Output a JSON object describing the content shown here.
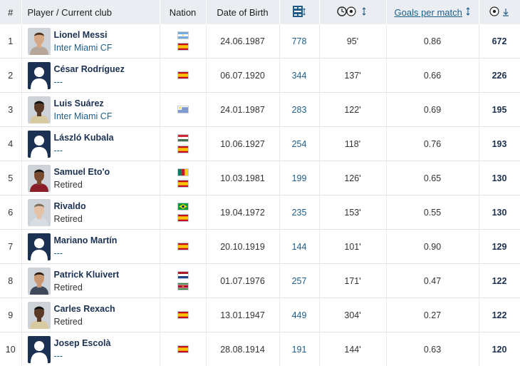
{
  "header": {
    "rank": "#",
    "player": "Player / Current club",
    "nation": "Nation",
    "dob": "Date of Birth",
    "apps_icon": "lineup-icon",
    "minutes_icon": "clock-ball-icon",
    "sort_icon": "sort-arrows-icon",
    "goals_per_match": "Goals per match",
    "goals_icon": "ball-icon",
    "sort_desc_icon": "sort-down-icon"
  },
  "colors": {
    "header_bg": "#eaeef2",
    "name": "#1a3151",
    "link": "#1d5f8a"
  },
  "rows": [
    {
      "rank": "1",
      "name": "Lionel Messi",
      "club": "Inter Miami CF",
      "flags": [
        "argentina",
        "spain"
      ],
      "dob": "24.06.1987",
      "apps": "778",
      "minutes": "95'",
      "gpm": "0.86",
      "goals": "672",
      "avatar": "photo"
    },
    {
      "rank": "2",
      "name": "César Rodríguez",
      "club": "---",
      "flags": [
        "spain"
      ],
      "dob": "06.07.1920",
      "apps": "344",
      "minutes": "137'",
      "gpm": "0.66",
      "goals": "226",
      "avatar": "silhouette"
    },
    {
      "rank": "3",
      "name": "Luis Suárez",
      "club": "Inter Miami CF",
      "flags": [
        "uruguay"
      ],
      "dob": "24.01.1987",
      "apps": "283",
      "minutes": "122'",
      "gpm": "0.69",
      "goals": "195",
      "avatar": "photo"
    },
    {
      "rank": "4",
      "name": "László Kubala",
      "club": "---",
      "flags": [
        "hungary",
        "spain"
      ],
      "dob": "10.06.1927",
      "apps": "254",
      "minutes": "118'",
      "gpm": "0.76",
      "goals": "193",
      "avatar": "silhouette"
    },
    {
      "rank": "5",
      "name": "Samuel Eto'o",
      "club": "Retired",
      "flags": [
        "cameroon",
        "spain"
      ],
      "dob": "10.03.1981",
      "apps": "199",
      "minutes": "126'",
      "gpm": "0.65",
      "goals": "130",
      "avatar": "photo"
    },
    {
      "rank": "6",
      "name": "Rivaldo",
      "club": "Retired",
      "flags": [
        "brazil",
        "spain"
      ],
      "dob": "19.04.1972",
      "apps": "235",
      "minutes": "153'",
      "gpm": "0.55",
      "goals": "130",
      "avatar": "photo"
    },
    {
      "rank": "7",
      "name": "Mariano Martín",
      "club": "---",
      "flags": [
        "spain"
      ],
      "dob": "20.10.1919",
      "apps": "144",
      "minutes": "101'",
      "gpm": "0.90",
      "goals": "129",
      "avatar": "silhouette"
    },
    {
      "rank": "8",
      "name": "Patrick Kluivert",
      "club": "Retired",
      "flags": [
        "netherlands",
        "suriname"
      ],
      "dob": "01.07.1976",
      "apps": "257",
      "minutes": "171'",
      "gpm": "0.47",
      "goals": "122",
      "avatar": "photo"
    },
    {
      "rank": "9",
      "name": "Carles Rexach",
      "club": "Retired",
      "flags": [
        "spain"
      ],
      "dob": "13.01.1947",
      "apps": "449",
      "minutes": "304'",
      "gpm": "0.27",
      "goals": "122",
      "avatar": "photo"
    },
    {
      "rank": "10",
      "name": "Josep Escolà",
      "club": "---",
      "flags": [
        "spain"
      ],
      "dob": "28.08.1914",
      "apps": "191",
      "minutes": "144'",
      "gpm": "0.63",
      "goals": "120",
      "avatar": "silhouette"
    }
  ]
}
